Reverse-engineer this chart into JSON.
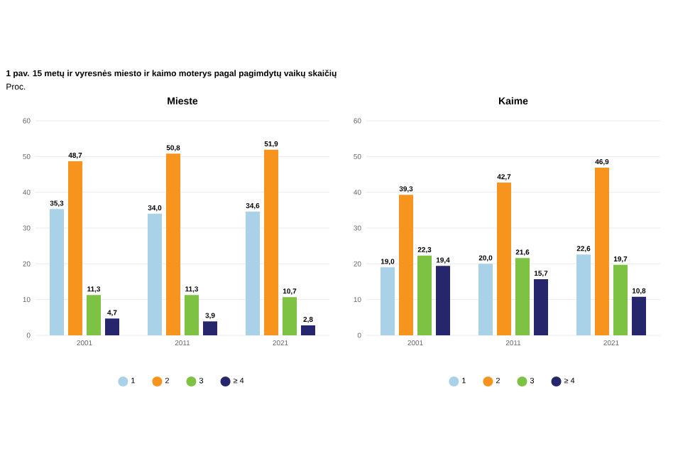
{
  "chart_data": [
    {
      "type": "bar",
      "title": "Mieste",
      "annotations": [
        "1 pav. 15 metų ir vyresnės miesto ir kaimo moterys pagal pagimdytų vaikų skaičių",
        "Proc."
      ],
      "categories": [
        "2001",
        "2011",
        "2021"
      ],
      "series": [
        {
          "name": "1",
          "color": "#a9d1e7",
          "values": [
            35.3,
            34.0,
            34.6
          ],
          "value_labels": [
            "35,3",
            "34,0",
            "34,6"
          ]
        },
        {
          "name": "2",
          "color": "#f7941d",
          "values": [
            48.7,
            50.8,
            51.9
          ],
          "value_labels": [
            "48,7",
            "50,8",
            "51,9"
          ]
        },
        {
          "name": "3",
          "color": "#7dc242",
          "values": [
            11.3,
            11.3,
            10.7
          ],
          "value_labels": [
            "11,3",
            "11,3",
            "10,7"
          ]
        },
        {
          "name": "≥ 4",
          "color": "#25266b",
          "values": [
            4.7,
            3.9,
            2.8
          ],
          "value_labels": [
            "4,7",
            "3,9",
            "2,8"
          ]
        }
      ],
      "ylim": [
        0,
        60
      ],
      "yticks": [
        0,
        10,
        20,
        30,
        40,
        50,
        60
      ],
      "grid": "y",
      "legend": "bottom"
    },
    {
      "type": "bar",
      "title": "Kaime",
      "categories": [
        "2001",
        "2011",
        "2021"
      ],
      "series": [
        {
          "name": "1",
          "color": "#a9d1e7",
          "values": [
            19.0,
            20.0,
            22.6
          ],
          "value_labels": [
            "19,0",
            "20,0",
            "22,6"
          ]
        },
        {
          "name": "2",
          "color": "#f7941d",
          "values": [
            39.3,
            42.7,
            46.9
          ],
          "value_labels": [
            "39,3",
            "42,7",
            "46,9"
          ]
        },
        {
          "name": "3",
          "color": "#7dc242",
          "values": [
            22.3,
            21.6,
            19.7
          ],
          "value_labels": [
            "22,3",
            "21,6",
            "19,7"
          ]
        },
        {
          "name": "≥ 4",
          "color": "#25266b",
          "values": [
            19.4,
            15.7,
            10.8
          ],
          "value_labels": [
            "19,4",
            "15,7",
            "10,8"
          ]
        }
      ],
      "ylim": [
        0,
        60
      ],
      "yticks": [
        0,
        10,
        20,
        30,
        40,
        50,
        60
      ],
      "grid": "y",
      "legend": "bottom"
    }
  ]
}
